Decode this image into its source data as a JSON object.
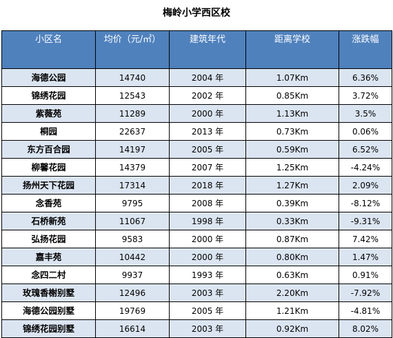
{
  "title": "梅岭小学西区校",
  "headers": [
    "小区名",
    "均价（元/㎡）",
    "建筑年代",
    "距离学校",
    "涨跌幅"
  ],
  "rows": [
    [
      "海德公园",
      "14740",
      "2004 年",
      "1.07Km",
      "6.36%"
    ],
    [
      "锦绣花园",
      "12543",
      "2002 年",
      "0.85Km",
      "3.72%"
    ],
    [
      "紫薇苑",
      "11289",
      "2000 年",
      "1.13Km",
      "3.5%"
    ],
    [
      "桐园",
      "22637",
      "2013 年",
      "0.73Km",
      "0.06%"
    ],
    [
      "东方百合园",
      "14197",
      "2005 年",
      "0.59Km",
      "6.52%"
    ],
    [
      "柳馨花园",
      "14379",
      "2007 年",
      "1.25Km",
      "-4.24%"
    ],
    [
      "扬州天下花园",
      "17314",
      "2018 年",
      "1.27Km",
      "2.09%"
    ],
    [
      "念香苑",
      "9795",
      "2008 年",
      "0.39Km",
      "-8.12%"
    ],
    [
      "石桥新苑",
      "11067",
      "1998 年",
      "0.33Km",
      "-9.31%"
    ],
    [
      "弘扬花园",
      "9583",
      "2000 年",
      "0.87Km",
      "7.42%"
    ],
    [
      "嘉丰苑",
      "10442",
      "2000 年",
      "0.80Km",
      "1.47%"
    ],
    [
      "念四二村",
      "9937",
      "1993 年",
      "0.63Km",
      "0.91%"
    ],
    [
      "玫瑰香榭别墅",
      "12496",
      "2003 年",
      "2.20Km",
      "-7.92%"
    ],
    [
      "海德公园别墅",
      "19769",
      "2005 年",
      "1.21Km",
      "-4.81%"
    ],
    [
      "锦绣花园别墅",
      "16614",
      "2003 年",
      "0.92Km",
      "8.02%"
    ]
  ],
  "colors": {
    "header_bg": "#4f81bd",
    "header_text": "#ffffff",
    "row_alt_bg": "#dbe5f1",
    "row_bg": "#ffffff",
    "border": "#000000"
  }
}
